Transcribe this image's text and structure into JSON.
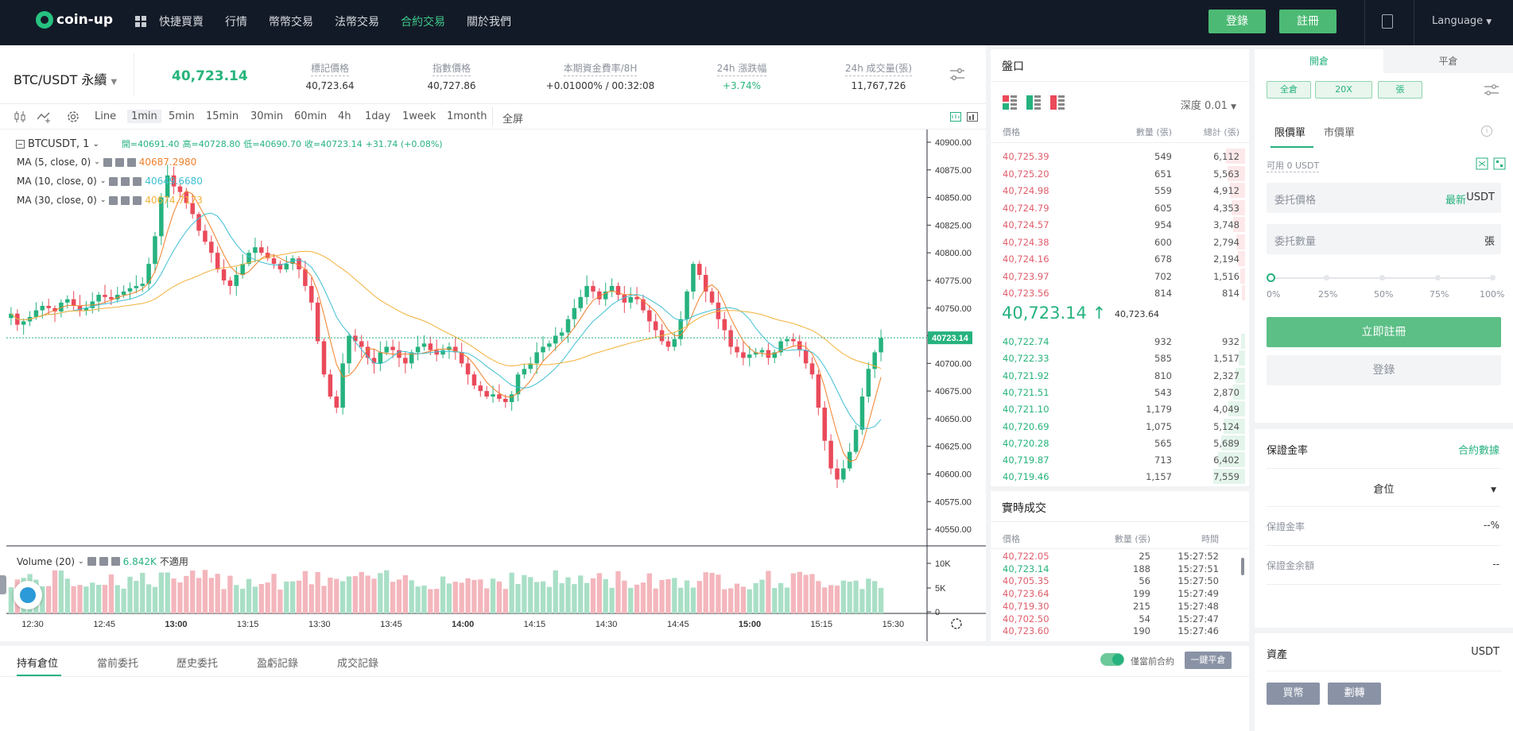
{
  "nav": {
    "logo": "coin-up",
    "items": [
      "快捷買賣",
      "行情",
      "幣幣交易",
      "法幣交易",
      "合約交易",
      "關於我們"
    ],
    "active_index": 4,
    "login": "登錄",
    "register": "註冊",
    "language": "Language"
  },
  "ticker": {
    "pair": "BTC/USDT 永續",
    "last_price": "40,723.14",
    "mark_label": "標記價格",
    "mark_value": "40,723.64",
    "index_label": "指數價格",
    "index_value": "40,727.86",
    "funding_label": "本期資金費率/8H",
    "funding_value": "+0.01000% / 00:32:08",
    "change_label": "24h 漲跌幅",
    "change_value": "+3.74%",
    "volume_label": "24h 成交量(張)",
    "volume_value": "11,767,726"
  },
  "toolbar": {
    "intervals": [
      "Line",
      "1min",
      "5min",
      "15min",
      "30min",
      "60min",
      "4h",
      "1day",
      "1week",
      "1month",
      "全屏"
    ],
    "selected": "1min"
  },
  "chart": {
    "symbol": "BTCUSDT, 1",
    "ohlc": {
      "open": "開=40691.40",
      "high": "高=40728.80",
      "low": "低=40690.70",
      "close": "收=40723.14",
      "change": "+31.74 (+0.08%)"
    },
    "ma": [
      {
        "label": "MA (5, close, 0)",
        "value": "40687.2980",
        "color": "#f0802b"
      },
      {
        "label": "MA (10, close, 0)",
        "value": "40649.6680",
        "color": "#3fbfd3"
      },
      {
        "label": "MA (30, close, 0)",
        "value": "40674.7173",
        "color": "#f2b13a"
      }
    ],
    "volume_label": "Volume (20)",
    "volume_value": "6.842K",
    "volume_na": "不適用",
    "last_label": "40723.14",
    "up_color": "#26b27e",
    "down_color": "#ea4a5a"
  },
  "chart_data": {
    "type": "candlestick",
    "title": "BTCUSDT, 1",
    "y_axis_ticks": [
      "40900.00",
      "40875.00",
      "40850.00",
      "40825.00",
      "40800.00",
      "40775.00",
      "40750.00",
      "40725.00",
      "40700.00",
      "40675.00",
      "40650.00",
      "40625.00",
      "40600.00",
      "40575.00",
      "40550.00"
    ],
    "ylim": [
      40540,
      40910
    ],
    "volume_ticks": [
      "10K",
      "5K",
      "0"
    ],
    "x_axis_ticks": [
      "12:30",
      "12:45",
      "13:00",
      "13:15",
      "13:30",
      "13:45",
      "14:00",
      "14:15",
      "14:30",
      "14:45",
      "15:00",
      "15:15",
      "15:30"
    ],
    "close_path": [
      40745,
      40735,
      40738,
      40742,
      40748,
      40752,
      40750,
      40747,
      40755,
      40758,
      40752,
      40748,
      40750,
      40756,
      40762,
      40760,
      40758,
      40762,
      40765,
      40768,
      40770,
      40772,
      40790,
      40815,
      40850,
      40870,
      40860,
      40855,
      40845,
      40835,
      40820,
      40810,
      40800,
      40785,
      40775,
      40770,
      40780,
      40790,
      40800,
      40805,
      40800,
      40795,
      40790,
      40785,
      40790,
      40795,
      40785,
      40770,
      40755,
      40720,
      40690,
      40670,
      40660,
      40700,
      40725,
      40720,
      40715,
      40705,
      40700,
      40710,
      40715,
      40712,
      40705,
      40700,
      40710,
      40715,
      40718,
      40712,
      40708,
      40712,
      40715,
      40710,
      40700,
      40690,
      40680,
      40675,
      40670,
      40672,
      40668,
      40665,
      40672,
      40690,
      40695,
      40700,
      40710,
      40715,
      40718,
      40725,
      40728,
      40740,
      40750,
      40760,
      40770,
      40765,
      40758,
      40765,
      40770,
      40762,
      40755,
      40760,
      40758,
      40748,
      40738,
      40730,
      40720,
      40715,
      40722,
      40740,
      40765,
      40790,
      40780,
      40765,
      40755,
      40740,
      40730,
      40715,
      40710,
      40705,
      40708,
      40710,
      40712,
      40705,
      40710,
      40720,
      40722,
      40720,
      40712,
      40700,
      40690,
      40660,
      40630,
      40605,
      40595,
      40605,
      40620,
      40640,
      40670,
      40695,
      40710,
      40723
    ],
    "last_price": 40723.14
  },
  "orderbook": {
    "title": "盤口",
    "depth": "深度 0.01",
    "headers": [
      "價格",
      "數量 (張)",
      "總計 (張)"
    ],
    "asks": [
      [
        "40,725.39",
        "549",
        "6,112"
      ],
      [
        "40,725.20",
        "651",
        "5,563"
      ],
      [
        "40,724.98",
        "559",
        "4,912"
      ],
      [
        "40,724.79",
        "605",
        "4,353"
      ],
      [
        "40,724.57",
        "954",
        "3,748"
      ],
      [
        "40,724.38",
        "600",
        "2,794"
      ],
      [
        "40,724.16",
        "678",
        "2,194"
      ],
      [
        "40,723.97",
        "702",
        "1,516"
      ],
      [
        "40,723.56",
        "814",
        "814"
      ]
    ],
    "mid_price": "40,723.14",
    "mid_mark": "40,723.64",
    "bids": [
      [
        "40,722.74",
        "932",
        "932"
      ],
      [
        "40,722.33",
        "585",
        "1,517"
      ],
      [
        "40,721.92",
        "810",
        "2,327"
      ],
      [
        "40,721.51",
        "543",
        "2,870"
      ],
      [
        "40,721.10",
        "1,179",
        "4,049"
      ],
      [
        "40,720.69",
        "1,075",
        "5,124"
      ],
      [
        "40,720.28",
        "565",
        "5,689"
      ],
      [
        "40,719.87",
        "713",
        "6,402"
      ],
      [
        "40,719.46",
        "1,157",
        "7,559"
      ]
    ]
  },
  "trades": {
    "title": "實時成交",
    "headers": [
      "價格",
      "數量 (張)",
      "時間"
    ],
    "rows": [
      [
        "40,722.05",
        "25",
        "15:27:52",
        "down"
      ],
      [
        "40,723.14",
        "188",
        "15:27:51",
        "up"
      ],
      [
        "40,705.35",
        "56",
        "15:27:50",
        "down"
      ],
      [
        "40,723.64",
        "199",
        "15:27:49",
        "down"
      ],
      [
        "40,719.30",
        "215",
        "15:27:48",
        "down"
      ],
      [
        "40,702.50",
        "54",
        "15:27:47",
        "down"
      ],
      [
        "40,723.60",
        "190",
        "15:27:46",
        "down"
      ]
    ]
  },
  "trade_panel": {
    "tab_open": "開倉",
    "tab_close": "平倉",
    "mode_cross": "全倉",
    "leverage": "20X",
    "unit": "張",
    "order_limit": "限價單",
    "order_market": "市價單",
    "available": "可用 0 USDT",
    "price_placeholder": "委托價格",
    "price_latest": "最新",
    "price_unit": "USDT",
    "qty_placeholder": "委托數量",
    "qty_unit": "張",
    "slider": [
      "0%",
      "25%",
      "50%",
      "75%",
      "100%"
    ],
    "register_now": "立即註冊",
    "login": "登錄"
  },
  "margin": {
    "title": "保證金率",
    "link": "合約數據",
    "position_select": "倉位",
    "rate_label": "保證金率",
    "rate_value": "--%",
    "balance_label": "保證金余額",
    "balance_value": "--"
  },
  "assets": {
    "title": "資產",
    "currency": "USDT",
    "buy": "買幣",
    "transfer": "劃轉"
  },
  "bottom": {
    "tabs": [
      "持有倉位",
      "當前委托",
      "歷史委托",
      "盈虧記錄",
      "成交記錄"
    ],
    "toggle_label": "僅當前合約",
    "close_all": "一鍵平倉"
  }
}
